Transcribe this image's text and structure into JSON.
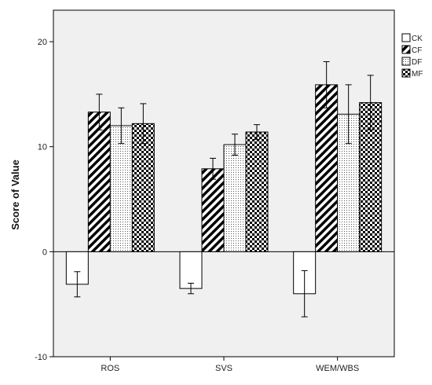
{
  "chart_data": {
    "type": "bar",
    "title": "",
    "xlabel": "",
    "ylabel": "Score of Value",
    "ylim": [
      -10,
      23
    ],
    "yticks": [
      -10,
      0,
      10,
      20
    ],
    "grid": false,
    "legend_position": "top-right",
    "categories": [
      "ROS",
      "SVS",
      "WEM/WBS"
    ],
    "series": [
      {
        "name": "CK",
        "pattern": "none",
        "values": [
          -3.1,
          -3.5,
          -4.0
        ],
        "error": [
          1.2,
          0.5,
          2.2
        ]
      },
      {
        "name": "CF",
        "pattern": "diagonal",
        "values": [
          13.3,
          7.9,
          15.9
        ],
        "error": [
          1.7,
          1.0,
          2.2
        ]
      },
      {
        "name": "DF",
        "pattern": "dots",
        "values": [
          12.0,
          10.2,
          13.1
        ],
        "error": [
          1.7,
          1.0,
          2.8
        ]
      },
      {
        "name": "MF",
        "pattern": "checker",
        "values": [
          12.2,
          11.4,
          14.2
        ],
        "error": [
          1.9,
          0.7,
          2.6
        ]
      }
    ],
    "colors": {
      "plot_background": "#f0f0f0",
      "bar_stroke": "#000000",
      "bar_fill": "#ffffff"
    }
  }
}
